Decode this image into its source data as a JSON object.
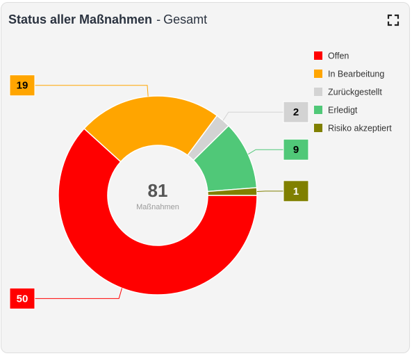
{
  "header": {
    "title": "Status aller Maßnahmen",
    "separator": "-",
    "subtitle": "Gesamt"
  },
  "toolbar": {
    "expand_icon": "fullscreen-icon"
  },
  "chart_data": {
    "type": "pie",
    "donut": true,
    "center_value": "81",
    "center_label": "Maßnahmen",
    "legend_position": "top-right",
    "slices": [
      {
        "name": "Offen",
        "value": 50,
        "color": "#ff0000",
        "label_text_color": "#ffffff"
      },
      {
        "name": "In Bearbeitung",
        "value": 19,
        "color": "#ffa500",
        "label_text_color": "#000000"
      },
      {
        "name": "Zurückgestellt",
        "value": 2,
        "color": "#d3d3d3",
        "label_text_color": "#000000"
      },
      {
        "name": "Erledigt",
        "value": 9,
        "color": "#50c878",
        "label_text_color": "#000000"
      },
      {
        "name": "Risiko akzeptiert",
        "value": 1,
        "color": "#808000",
        "label_text_color": "#ffffff"
      }
    ]
  }
}
